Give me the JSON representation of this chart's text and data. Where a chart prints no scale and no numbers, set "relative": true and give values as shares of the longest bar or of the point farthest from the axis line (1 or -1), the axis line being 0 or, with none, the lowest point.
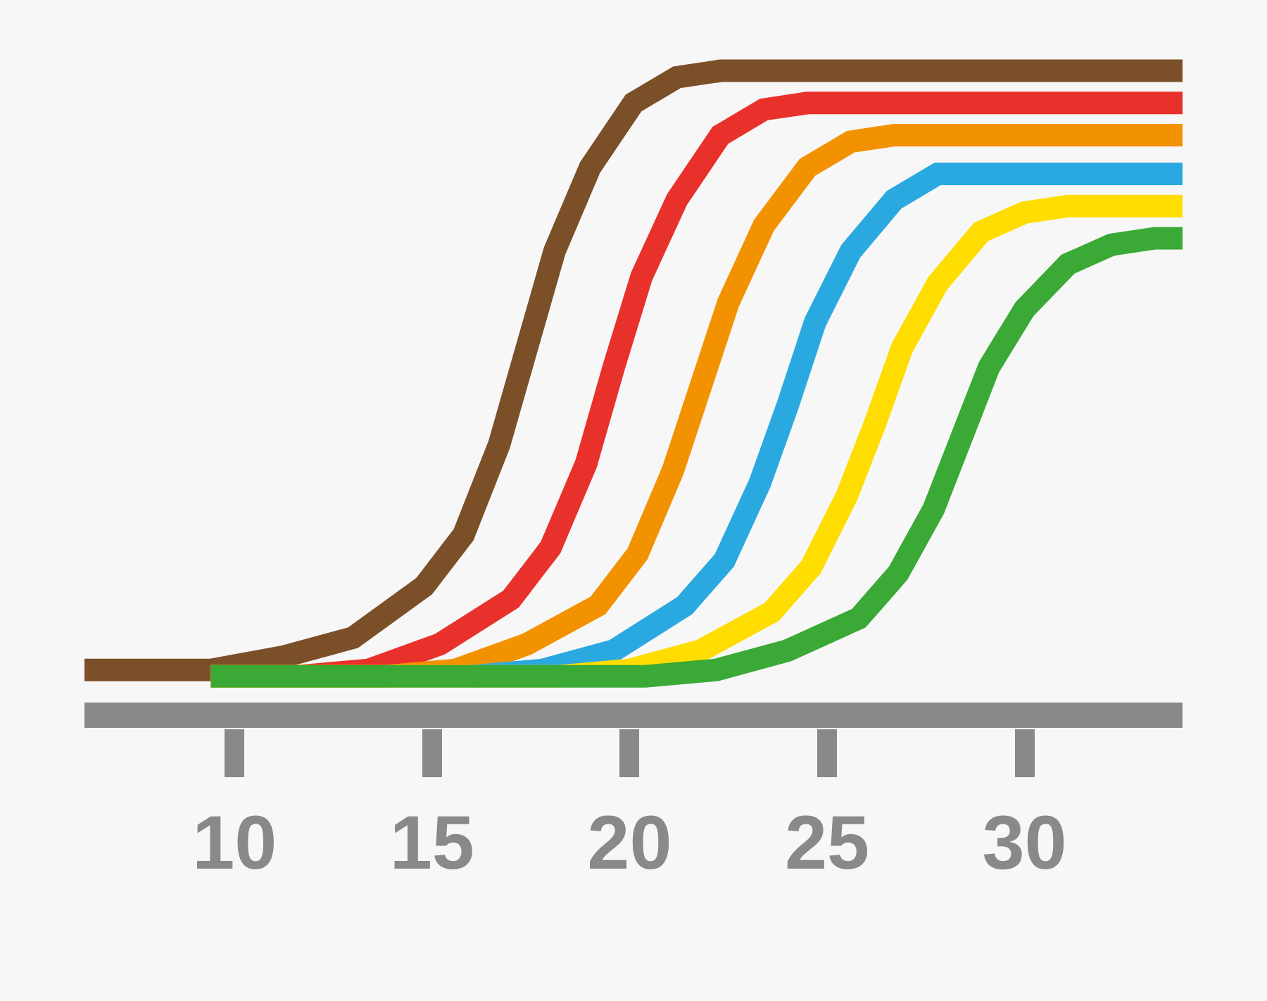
{
  "chart_data": {
    "type": "line",
    "relative": true,
    "xlim": [
      6.2,
      34
    ],
    "xticks": [
      10,
      15,
      20,
      25,
      30
    ],
    "series": [
      {
        "color": "#7b4f27",
        "x": [
          6.2,
          9.4,
          11.2,
          13,
          14.8,
          15.8,
          16.7,
          17.4,
          18.1,
          19,
          20.1,
          21.2,
          22.3,
          34
        ],
        "values": [
          0.07,
          0.07,
          0.09,
          0.12,
          0.2,
          0.28,
          0.42,
          0.57,
          0.72,
          0.85,
          0.95,
          0.99,
          1,
          1
        ]
      },
      {
        "color": "#e8312b",
        "x": [
          9.4,
          11.6,
          13.4,
          15.2,
          17,
          18,
          18.9,
          19.6,
          20.3,
          21.2,
          22.3,
          23.4,
          24.5,
          34
        ],
        "values": [
          0.06,
          0.06,
          0.07,
          0.11,
          0.18,
          0.26,
          0.39,
          0.54,
          0.68,
          0.8,
          0.9,
          0.94,
          0.95,
          0.95
        ]
      },
      {
        "color": "#f39200",
        "x": [
          9.4,
          13.8,
          15.6,
          17.4,
          19.2,
          20.2,
          21.1,
          21.8,
          22.5,
          23.4,
          24.5,
          25.6,
          26.7,
          34
        ],
        "values": [
          0.06,
          0.06,
          0.07,
          0.11,
          0.17,
          0.25,
          0.38,
          0.51,
          0.64,
          0.76,
          0.85,
          0.89,
          0.9,
          0.9
        ]
      },
      {
        "color": "#2aa9e0",
        "x": [
          16,
          17.8,
          19.6,
          21.4,
          22.4,
          23.3,
          24,
          24.7,
          25.6,
          26.7,
          27.8,
          28.9,
          34
        ],
        "values": [
          0.06,
          0.07,
          0.1,
          0.17,
          0.24,
          0.36,
          0.48,
          0.61,
          0.72,
          0.8,
          0.84,
          0.84,
          0.84
        ]
      },
      {
        "color": "#ffdd00",
        "x": [
          9.4,
          18.2,
          20,
          21.8,
          23.6,
          24.6,
          25.5,
          26.2,
          26.9,
          27.8,
          28.9,
          30,
          31.1,
          34
        ],
        "values": [
          0.06,
          0.06,
          0.07,
          0.1,
          0.16,
          0.23,
          0.34,
          0.45,
          0.57,
          0.67,
          0.75,
          0.78,
          0.79,
          0.79
        ]
      },
      {
        "color": "#3aa935",
        "x": [
          9.4,
          20.4,
          22.2,
          24,
          25.8,
          26.8,
          27.7,
          28.4,
          29.1,
          30,
          31.1,
          32.2,
          33.3,
          34
        ],
        "values": [
          0.06,
          0.06,
          0.07,
          0.1,
          0.15,
          0.22,
          0.32,
          0.43,
          0.54,
          0.63,
          0.7,
          0.73,
          0.74,
          0.74
        ]
      }
    ]
  }
}
